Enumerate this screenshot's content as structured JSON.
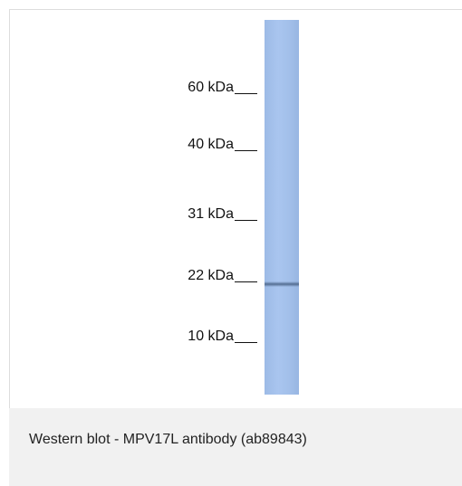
{
  "blot": {
    "markers": [
      "60 kDa",
      "40 kDa",
      "31 kDa",
      "22 kDa",
      "10 kDa"
    ]
  },
  "caption": "Western blot - MPV17L antibody (ab89843)"
}
